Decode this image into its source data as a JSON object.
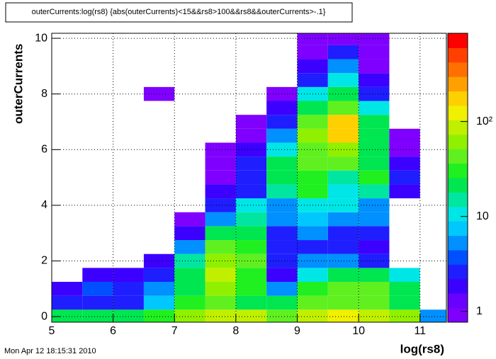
{
  "chart_data": {
    "type": "heatmap",
    "title": "outerCurrents:log(rs8) {abs(outerCurrents)<15&&rs8>100&&rs8&&outerCurrents>-.1}",
    "x_label": "log(rs8)",
    "y_label": "outerCurrents",
    "footer": "Mon Apr 12 18:15:31 2010",
    "xlim": [
      5,
      11.43
    ],
    "ylim": [
      -0.2,
      10.18
    ],
    "xticks": [
      5,
      6,
      7,
      8,
      9,
      10,
      11
    ],
    "yticks": [
      0,
      2,
      4,
      6,
      8,
      10
    ],
    "zlim": [
      0.77,
      850
    ],
    "zticks": [
      1,
      10,
      {
        "value": 100,
        "label": "10²"
      }
    ],
    "zlog": true,
    "grid": true,
    "palette": [
      "#7f00ff",
      "#6a00ff",
      "#3c00ff",
      "#1e1eff",
      "#0050ff",
      "#0090ff",
      "#00c8ff",
      "#00e6e6",
      "#00e6a0",
      "#00e650",
      "#20f020",
      "#60f020",
      "#90f000",
      "#c0f000",
      "#f0f000",
      "#ffd000",
      "#ffa000",
      "#ff7000",
      "#ff4000",
      "#ff0000"
    ],
    "x_bins": [
      5,
      5.5,
      6,
      6.5,
      7,
      7.5,
      8,
      8.5,
      9,
      9.5,
      10,
      10.5,
      11,
      11.5
    ],
    "y_bins": [
      -0.25,
      0.25,
      0.75,
      1.25,
      1.75,
      2.25,
      2.75,
      3.25,
      3.75,
      4.25,
      4.75,
      5.25,
      5.75,
      6.25,
      6.75,
      7.25,
      7.75,
      8.25,
      8.75,
      9.25,
      9.75,
      10.25
    ],
    "z": [
      [
        20,
        20,
        25,
        30,
        60,
        100,
        80,
        50,
        100,
        120,
        80,
        60,
        5
      ],
      [
        3,
        3,
        3,
        8,
        30,
        40,
        20,
        20,
        40,
        50,
        40,
        20,
        null
      ],
      [
        2,
        4,
        3,
        5,
        20,
        60,
        30,
        5,
        30,
        40,
        50,
        20,
        null
      ],
      [
        null,
        2,
        2,
        3,
        20,
        80,
        30,
        2,
        10,
        20,
        20,
        10,
        null
      ],
      [
        null,
        null,
        null,
        2,
        15,
        60,
        40,
        3,
        5,
        5,
        3,
        null,
        null
      ],
      [
        null,
        null,
        null,
        null,
        5,
        40,
        30,
        3,
        3,
        3,
        2,
        null,
        null
      ],
      [
        null,
        null,
        null,
        null,
        2,
        20,
        20,
        3,
        5,
        3,
        3,
        null,
        null
      ],
      [
        null,
        null,
        null,
        null,
        1,
        5,
        15,
        5,
        8,
        5,
        5,
        null,
        null
      ],
      [
        null,
        null,
        null,
        null,
        null,
        3,
        10,
        5,
        10,
        10,
        5,
        null,
        null
      ],
      [
        null,
        null,
        null,
        null,
        null,
        2,
        3,
        15,
        30,
        10,
        15,
        2,
        null
      ],
      [
        null,
        null,
        null,
        null,
        null,
        1,
        3,
        20,
        30,
        15,
        30,
        3,
        null
      ],
      [
        null,
        null,
        null,
        null,
        null,
        1,
        3,
        20,
        40,
        40,
        20,
        2,
        null
      ],
      [
        null,
        null,
        null,
        null,
        null,
        1,
        2,
        10,
        50,
        60,
        20,
        1,
        null
      ],
      [
        null,
        null,
        null,
        null,
        null,
        null,
        1,
        5,
        60,
        150,
        20,
        1,
        null
      ],
      [
        null,
        null,
        null,
        null,
        null,
        null,
        1,
        3,
        40,
        150,
        20,
        null,
        null
      ],
      [
        null,
        null,
        null,
        null,
        null,
        null,
        null,
        2,
        20,
        50,
        10,
        null,
        null
      ],
      [
        null,
        null,
        null,
        1,
        null,
        null,
        null,
        1,
        10,
        20,
        3,
        null,
        null
      ],
      [
        null,
        null,
        null,
        null,
        null,
        null,
        null,
        null,
        3,
        10,
        2,
        null,
        null
      ],
      [
        null,
        null,
        null,
        null,
        null,
        null,
        null,
        null,
        2,
        5,
        1,
        null,
        null
      ],
      [
        null,
        null,
        null,
        null,
        null,
        null,
        null,
        null,
        1,
        3,
        1,
        null,
        null
      ],
      [
        null,
        null,
        null,
        null,
        null,
        null,
        null,
        null,
        1,
        1,
        1,
        null,
        null
      ]
    ]
  }
}
